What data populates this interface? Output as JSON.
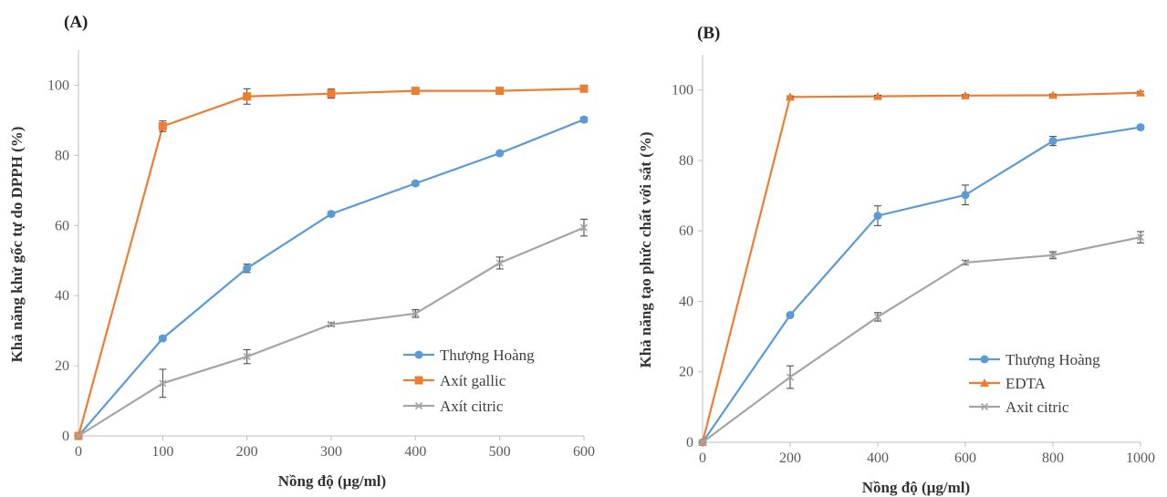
{
  "colors": {
    "blue": "#5b9bd5",
    "orange": "#ed7d31",
    "gray": "#a5a5a5",
    "axis": "#bfbfbf",
    "errorbar": "#404040"
  },
  "chart_data": [
    {
      "type": "line",
      "panel_label": "(A)",
      "title": "",
      "xlabel": "Nồng độ (µg/ml)",
      "ylabel": "Khả năng khử gốc tự do DPPH (%)",
      "xlim": [
        0,
        600
      ],
      "ylim": [
        0,
        110
      ],
      "x_ticks": [
        0,
        100,
        200,
        300,
        400,
        500,
        600
      ],
      "y_ticks": [
        0,
        20,
        40,
        60,
        80,
        100
      ],
      "grid": false,
      "legend_position": "bottom-right",
      "series": [
        {
          "name": "Thượng Hoàng",
          "marker": "circle",
          "color": "#5b9bd5",
          "x": [
            0,
            100,
            200,
            300,
            400,
            500,
            600
          ],
          "y": [
            0,
            27.8,
            47.8,
            63.3,
            72.0,
            80.6,
            90.2
          ],
          "err": [
            0,
            0.6,
            1.2,
            0.6,
            0.6,
            0.5,
            0.7
          ]
        },
        {
          "name": "Axít gallic",
          "marker": "square",
          "color": "#ed7d31",
          "x": [
            0,
            100,
            200,
            300,
            400,
            500,
            600
          ],
          "y": [
            0,
            88.3,
            96.8,
            97.6,
            98.4,
            98.4,
            99.0
          ],
          "err": [
            0,
            1.5,
            2.2,
            1.3,
            0.5,
            0.5,
            0.5
          ]
        },
        {
          "name": "Axít citric",
          "marker": "x",
          "color": "#a5a5a5",
          "x": [
            0,
            100,
            200,
            300,
            400,
            500,
            600
          ],
          "y": [
            0,
            15.0,
            22.6,
            31.8,
            34.9,
            49.3,
            59.4
          ],
          "err": [
            0,
            4.0,
            2.0,
            0.5,
            1.1,
            1.7,
            2.4
          ]
        }
      ]
    },
    {
      "type": "line",
      "panel_label": "(B)",
      "title": "",
      "xlabel": "Nồng độ (µg/ml)",
      "ylabel": "Khả năng tạo phức chất với sắt (%)",
      "xlim": [
        0,
        1000
      ],
      "ylim": [
        0,
        110
      ],
      "x_ticks": [
        0,
        200,
        400,
        600,
        800,
        1000
      ],
      "y_ticks": [
        0,
        20,
        40,
        60,
        80,
        100
      ],
      "grid": false,
      "legend_position": "bottom-right",
      "series": [
        {
          "name": "Thượng Hoàng",
          "marker": "circle",
          "color": "#5b9bd5",
          "x": [
            0,
            200,
            400,
            600,
            800,
            1000
          ],
          "y": [
            0,
            36.1,
            64.3,
            70.2,
            85.5,
            89.4
          ],
          "err": [
            0,
            0.5,
            2.8,
            2.8,
            1.3,
            0.6
          ]
        },
        {
          "name": "EDTA",
          "marker": "triangle",
          "color": "#ed7d31",
          "x": [
            0,
            200,
            400,
            600,
            800,
            1000
          ],
          "y": [
            0,
            98.0,
            98.2,
            98.4,
            98.5,
            99.2
          ],
          "err": [
            0,
            0.3,
            0.3,
            0.3,
            0.3,
            0.4
          ]
        },
        {
          "name": "Axit citric",
          "marker": "x",
          "color": "#a5a5a5",
          "x": [
            0,
            200,
            400,
            600,
            800,
            1000
          ],
          "y": [
            0,
            18.5,
            35.6,
            51.0,
            53.1,
            58.2
          ],
          "err": [
            0,
            3.2,
            1.2,
            0.6,
            1.0,
            1.6
          ]
        }
      ]
    }
  ]
}
